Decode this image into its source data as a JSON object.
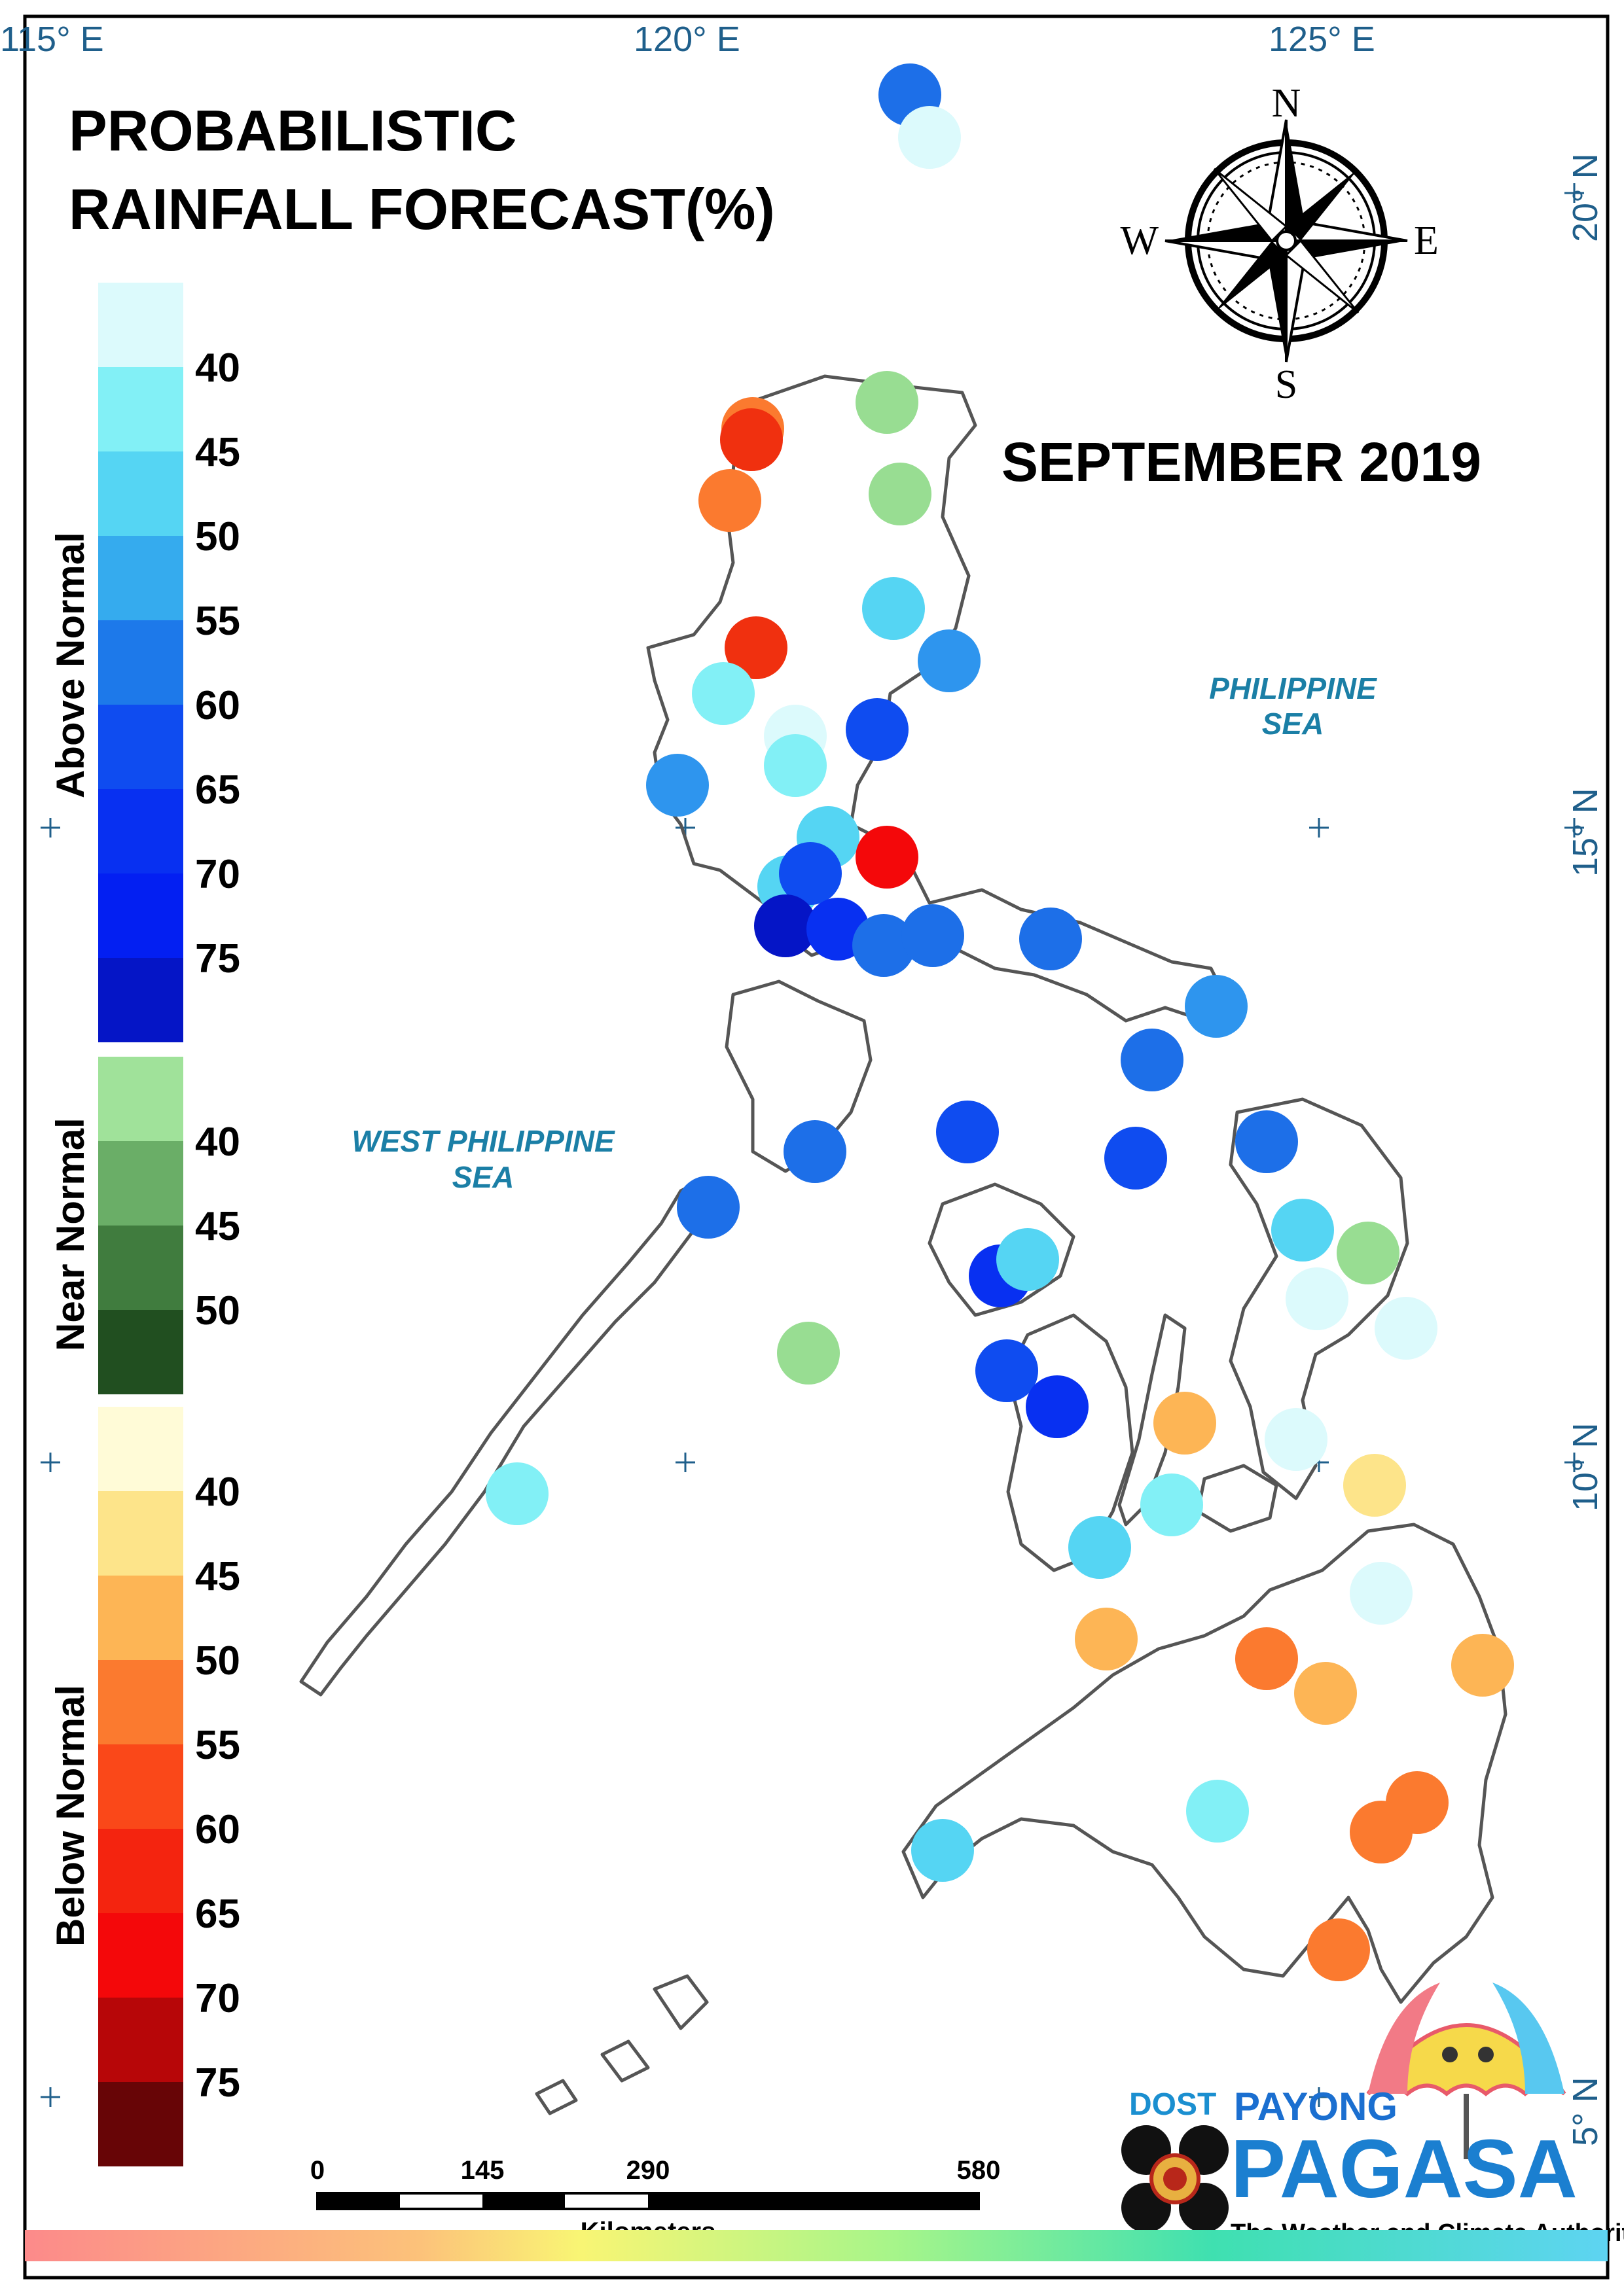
{
  "title": {
    "line1": "PROBABILISTIC",
    "line2": "RAINFALL FORECAST(%)"
  },
  "period": "SEPTEMBER 2019",
  "compass": {
    "n": "N",
    "s": "S",
    "e": "E",
    "w": "W"
  },
  "longitude_labels": [
    "115° E",
    "120° E",
    "125° E"
  ],
  "latitude_labels": [
    "20° N",
    "15° N",
    "10° N",
    "5° N"
  ],
  "seas": {
    "philippine_sea": [
      "PHILIPPINE",
      "SEA"
    ],
    "west_philippine_sea": [
      "WEST PHILIPPINE",
      "SEA"
    ]
  },
  "legend": {
    "above_normal": {
      "title": "Above Normal",
      "ticks": [
        "40",
        "45",
        "50",
        "55",
        "60",
        "65",
        "70",
        "75"
      ],
      "colors": [
        "#dcfafc",
        "#82f0f6",
        "#55d5f3",
        "#35abee",
        "#1d79ea",
        "#0f4cf0",
        "#0830f1",
        "#031ff2",
        "#0515c6"
      ]
    },
    "near_normal": {
      "title": "Near Normal",
      "ticks": [
        "40",
        "45",
        "50"
      ],
      "colors": [
        "#a0e29a",
        "#6aae67",
        "#407c3e",
        "#214f20"
      ]
    },
    "below_normal": {
      "title": "Below Normal",
      "ticks": [
        "40",
        "45",
        "50",
        "55",
        "60",
        "65",
        "70",
        "75"
      ],
      "colors": [
        "#fffbd7",
        "#fde48a",
        "#fdb555",
        "#fb7a2f",
        "#fa4819",
        "#f4240f",
        "#f4080a",
        "#b70608",
        "#670506"
      ]
    }
  },
  "scale_bar": {
    "labels": [
      "0",
      "145",
      "290",
      "580"
    ],
    "unit": "Kilometers"
  },
  "branding": {
    "dost": "DOST",
    "payong": "PAYONG",
    "pagasa": "PAGASA",
    "tagline": "The Weather and Climate Authority"
  },
  "stations": [
    {
      "category": "above",
      "level": "60",
      "color": "#1d6fe8"
    },
    {
      "category": "above",
      "level": "40",
      "color": "#dcfafc"
    },
    {
      "category": "below",
      "level": "55",
      "color": "#fb7a2f"
    },
    {
      "category": "below",
      "level": "65",
      "color": "#f0300f"
    },
    {
      "category": "near",
      "level": "40",
      "color": "#98dd92"
    },
    {
      "category": "below",
      "level": "55",
      "color": "#fb7a2f"
    },
    {
      "category": "near",
      "level": "40",
      "color": "#98dd92"
    },
    {
      "category": "above",
      "level": "50",
      "color": "#55d5f3"
    },
    {
      "category": "below",
      "level": "65",
      "color": "#f0300f"
    },
    {
      "category": "above",
      "level": "55",
      "color": "#2e95ee"
    },
    {
      "category": "above",
      "level": "45",
      "color": "#82f0f6"
    },
    {
      "category": "above",
      "level": "40",
      "color": "#dcfafc"
    },
    {
      "category": "above",
      "level": "45",
      "color": "#82f0f6"
    },
    {
      "category": "above",
      "level": "65",
      "color": "#0f4cf0"
    },
    {
      "category": "above",
      "level": "55",
      "color": "#2e95ee"
    },
    {
      "category": "above",
      "level": "50",
      "color": "#55d5f3"
    },
    {
      "category": "below",
      "level": "70",
      "color": "#f4080a"
    },
    {
      "category": "above",
      "level": "50",
      "color": "#55d5f3"
    },
    {
      "category": "above",
      "level": "65",
      "color": "#0f4cf0"
    },
    {
      "category": "above",
      "level": "75",
      "color": "#0515c6"
    },
    {
      "category": "above",
      "level": "70",
      "color": "#0830f1"
    },
    {
      "category": "above",
      "level": "60",
      "color": "#1d6fe8"
    },
    {
      "category": "above",
      "level": "60",
      "color": "#1d6fe8"
    },
    {
      "category": "above",
      "level": "60",
      "color": "#1d6fe8"
    },
    {
      "category": "above",
      "level": "55",
      "color": "#2e95ee"
    },
    {
      "category": "above",
      "level": "60",
      "color": "#1d6fe8"
    },
    {
      "category": "above",
      "level": "65",
      "color": "#0f4cf0"
    },
    {
      "category": "above",
      "level": "60",
      "color": "#1d6fe8"
    },
    {
      "category": "above",
      "level": "65",
      "color": "#0f4cf0"
    },
    {
      "category": "above",
      "level": "60",
      "color": "#1d6fe8"
    },
    {
      "category": "above",
      "level": "60",
      "color": "#1d6fe8"
    },
    {
      "category": "above",
      "level": "70",
      "color": "#0830f1"
    },
    {
      "category": "above",
      "level": "50",
      "color": "#55d5f3"
    },
    {
      "category": "above",
      "level": "50",
      "color": "#55d5f3"
    },
    {
      "category": "near",
      "level": "40",
      "color": "#98dd92"
    },
    {
      "category": "near",
      "level": "40",
      "color": "#98dd92"
    },
    {
      "category": "above",
      "level": "40",
      "color": "#dcfafc"
    },
    {
      "category": "above",
      "level": "40",
      "color": "#dcfafc"
    },
    {
      "category": "above",
      "level": "65",
      "color": "#0f4cf0"
    },
    {
      "category": "above",
      "level": "70",
      "color": "#0830f1"
    },
    {
      "category": "below",
      "level": "50",
      "color": "#fdb555"
    },
    {
      "category": "above",
      "level": "40",
      "color": "#dcfafc"
    },
    {
      "category": "above",
      "level": "45",
      "color": "#82f0f6"
    },
    {
      "category": "below",
      "level": "40",
      "color": "#fde48a"
    },
    {
      "category": "above",
      "level": "45",
      "color": "#82f0f6"
    },
    {
      "category": "above",
      "level": "50",
      "color": "#55d5f3"
    },
    {
      "category": "above",
      "level": "40",
      "color": "#dcfafc"
    },
    {
      "category": "below",
      "level": "50",
      "color": "#fdb555"
    },
    {
      "category": "below",
      "level": "55",
      "color": "#fb7a2f"
    },
    {
      "category": "below",
      "level": "50",
      "color": "#fdb555"
    },
    {
      "category": "below",
      "level": "50",
      "color": "#fdb555"
    },
    {
      "category": "above",
      "level": "45",
      "color": "#82f0f6"
    },
    {
      "category": "above",
      "level": "50",
      "color": "#55d5f3"
    },
    {
      "category": "below",
      "level": "55",
      "color": "#fb7a2f"
    },
    {
      "category": "below",
      "level": "55",
      "color": "#fb7a2f"
    },
    {
      "category": "below",
      "level": "55",
      "color": "#fb7a2f"
    }
  ]
}
